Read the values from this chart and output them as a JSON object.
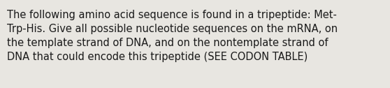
{
  "text": "The following amino acid sequence is found in a tripeptide: Met-\nTrp-His. Give all possible nucleotide sequences on the mRNA, on\nthe template strand of DNA, and on the nontemplate strand of\nDNA that could encode this tripeptide (SEE CODON TABLE)",
  "background_color": "#e8e6e1",
  "text_color": "#1a1a1a",
  "font_size": 10.5,
  "fig_width": 5.58,
  "fig_height": 1.26,
  "dpi": 100
}
